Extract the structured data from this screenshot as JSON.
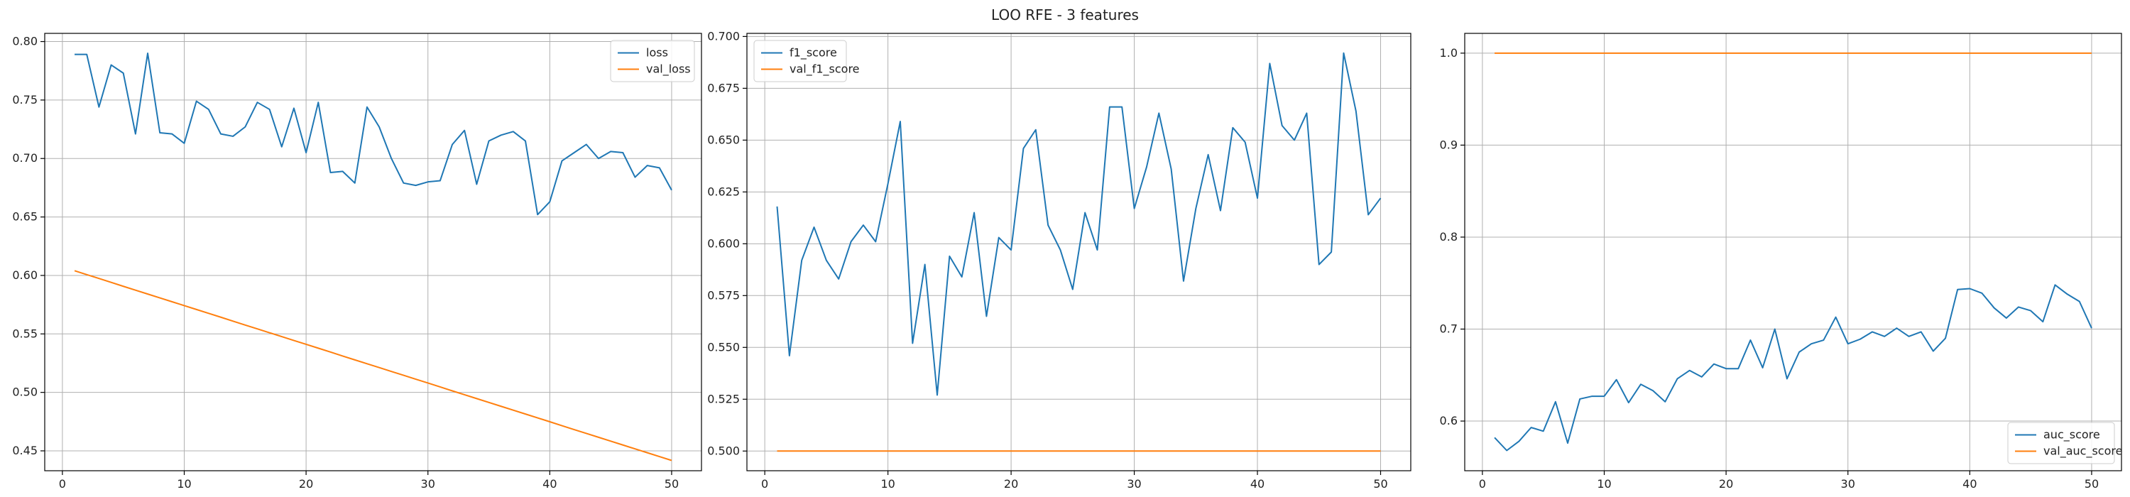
{
  "figure": {
    "title": "LOO RFE - 3 features"
  },
  "colors": {
    "series1": "#1f77b4",
    "series2": "#ff7f0e",
    "grid": "#b0b0b0",
    "axes": "#000000"
  },
  "chart_data": [
    {
      "type": "line",
      "title": "",
      "xlabel": "",
      "ylabel": "",
      "xlim": [
        -1.45,
        52.45
      ],
      "ylim": [
        0.433,
        0.807
      ],
      "xticks": [
        0,
        10,
        20,
        30,
        40,
        50
      ],
      "yticks": [
        0.45,
        0.5,
        0.55,
        0.6,
        0.65,
        0.7,
        0.75,
        0.8
      ],
      "ytick_labels": [
        "0.45",
        "0.50",
        "0.55",
        "0.60",
        "0.65",
        "0.70",
        "0.75",
        "0.80"
      ],
      "grid": true,
      "legend_position": "top-right",
      "x": [
        1,
        2,
        3,
        4,
        5,
        6,
        7,
        8,
        9,
        10,
        11,
        12,
        13,
        14,
        15,
        16,
        17,
        18,
        19,
        20,
        21,
        22,
        23,
        24,
        25,
        26,
        27,
        28,
        29,
        30,
        31,
        32,
        33,
        34,
        35,
        36,
        37,
        38,
        39,
        40,
        41,
        42,
        43,
        44,
        45,
        46,
        47,
        48,
        49,
        50
      ],
      "series": [
        {
          "name": "loss",
          "color": "#1f77b4",
          "values": [
            0.789,
            0.789,
            0.744,
            0.78,
            0.773,
            0.721,
            0.79,
            0.722,
            0.721,
            0.713,
            0.749,
            0.742,
            0.721,
            0.719,
            0.727,
            0.748,
            0.742,
            0.71,
            0.743,
            0.705,
            0.748,
            0.688,
            0.689,
            0.679,
            0.744,
            0.727,
            0.7,
            0.679,
            0.677,
            0.68,
            0.681,
            0.712,
            0.724,
            0.678,
            0.715,
            0.72,
            0.723,
            0.715,
            0.652,
            0.663,
            0.698,
            0.705,
            0.712,
            0.7,
            0.706,
            0.705,
            0.684,
            0.694,
            0.692,
            0.673
          ]
        },
        {
          "name": "val_loss",
          "color": "#ff7f0e",
          "values": [
            0.604,
            0.6007,
            0.5974,
            0.5941,
            0.5907,
            0.5874,
            0.5841,
            0.5808,
            0.5775,
            0.5742,
            0.5709,
            0.5676,
            0.5643,
            0.5609,
            0.5576,
            0.5543,
            0.551,
            0.5477,
            0.5444,
            0.5411,
            0.5378,
            0.5345,
            0.5311,
            0.5278,
            0.5245,
            0.5212,
            0.5179,
            0.5146,
            0.5113,
            0.508,
            0.5047,
            0.5013,
            0.498,
            0.4947,
            0.4914,
            0.4881,
            0.4848,
            0.4815,
            0.4782,
            0.4749,
            0.4715,
            0.4682,
            0.4649,
            0.4616,
            0.4583,
            0.455,
            0.4517,
            0.4484,
            0.4451,
            0.4418
          ]
        }
      ]
    },
    {
      "type": "line",
      "title": "",
      "xlabel": "",
      "ylabel": "",
      "xlim": [
        -1.45,
        52.45
      ],
      "ylim": [
        0.4905,
        0.7015
      ],
      "xticks": [
        0,
        10,
        20,
        30,
        40,
        50
      ],
      "yticks": [
        0.5,
        0.525,
        0.55,
        0.575,
        0.6,
        0.625,
        0.65,
        0.675,
        0.7
      ],
      "ytick_labels": [
        "0.500",
        "0.525",
        "0.550",
        "0.575",
        "0.600",
        "0.625",
        "0.650",
        "0.675",
        "0.700"
      ],
      "grid": true,
      "legend_position": "top-left",
      "x": [
        1,
        2,
        3,
        4,
        5,
        6,
        7,
        8,
        9,
        10,
        11,
        12,
        13,
        14,
        15,
        16,
        17,
        18,
        19,
        20,
        21,
        22,
        23,
        24,
        25,
        26,
        27,
        28,
        29,
        30,
        31,
        32,
        33,
        34,
        35,
        36,
        37,
        38,
        39,
        40,
        41,
        42,
        43,
        44,
        45,
        46,
        47,
        48,
        49,
        50
      ],
      "series": [
        {
          "name": "f1_score",
          "color": "#1f77b4",
          "values": [
            0.618,
            0.546,
            0.592,
            0.608,
            0.592,
            0.583,
            0.601,
            0.609,
            0.601,
            0.629,
            0.659,
            0.552,
            0.59,
            0.527,
            0.594,
            0.584,
            0.615,
            0.565,
            0.603,
            0.597,
            0.646,
            0.655,
            0.609,
            0.597,
            0.578,
            0.615,
            0.597,
            0.666,
            0.666,
            0.617,
            0.637,
            0.663,
            0.636,
            0.582,
            0.617,
            0.643,
            0.616,
            0.656,
            0.649,
            0.622,
            0.687,
            0.657,
            0.65,
            0.663,
            0.59,
            0.596,
            0.692,
            0.664,
            0.614,
            0.622
          ]
        },
        {
          "name": "val_f1_score",
          "color": "#ff7f0e",
          "values": [
            0.5,
            0.5,
            0.5,
            0.5,
            0.5,
            0.5,
            0.5,
            0.5,
            0.5,
            0.5,
            0.5,
            0.5,
            0.5,
            0.5,
            0.5,
            0.5,
            0.5,
            0.5,
            0.5,
            0.5,
            0.5,
            0.5,
            0.5,
            0.5,
            0.5,
            0.5,
            0.5,
            0.5,
            0.5,
            0.5,
            0.5,
            0.5,
            0.5,
            0.5,
            0.5,
            0.5,
            0.5,
            0.5,
            0.5,
            0.5,
            0.5,
            0.5,
            0.5,
            0.5,
            0.5,
            0.5,
            0.5,
            0.5,
            0.5,
            0.5
          ]
        }
      ]
    },
    {
      "type": "line",
      "title": "",
      "xlabel": "",
      "ylabel": "",
      "xlim": [
        -1.45,
        52.45
      ],
      "ylim": [
        0.546,
        1.0215
      ],
      "xticks": [
        0,
        10,
        20,
        30,
        40,
        50
      ],
      "yticks": [
        0.6,
        0.7,
        0.8,
        0.9,
        1.0
      ],
      "ytick_labels": [
        "0.6",
        "0.7",
        "0.8",
        "0.9",
        "1.0"
      ],
      "grid": true,
      "legend_position": "bottom-right",
      "x": [
        1,
        2,
        3,
        4,
        5,
        6,
        7,
        8,
        9,
        10,
        11,
        12,
        13,
        14,
        15,
        16,
        17,
        18,
        19,
        20,
        21,
        22,
        23,
        24,
        25,
        26,
        27,
        28,
        29,
        30,
        31,
        32,
        33,
        34,
        35,
        36,
        37,
        38,
        39,
        40,
        41,
        42,
        43,
        44,
        45,
        46,
        47,
        48,
        49,
        50
      ],
      "series": [
        {
          "name": "auc_score",
          "color": "#1f77b4",
          "values": [
            0.582,
            0.568,
            0.578,
            0.593,
            0.589,
            0.621,
            0.576,
            0.624,
            0.627,
            0.627,
            0.645,
            0.62,
            0.64,
            0.633,
            0.621,
            0.646,
            0.655,
            0.648,
            0.662,
            0.657,
            0.657,
            0.688,
            0.658,
            0.7,
            0.646,
            0.675,
            0.684,
            0.688,
            0.713,
            0.684,
            0.689,
            0.697,
            0.692,
            0.701,
            0.692,
            0.697,
            0.676,
            0.69,
            0.743,
            0.744,
            0.739,
            0.723,
            0.712,
            0.724,
            0.72,
            0.708,
            0.748,
            0.738,
            0.73,
            0.701
          ]
        },
        {
          "name": "val_auc_score",
          "color": "#ff7f0e",
          "values": [
            1.0,
            1.0,
            1.0,
            1.0,
            1.0,
            1.0,
            1.0,
            1.0,
            1.0,
            1.0,
            1.0,
            1.0,
            1.0,
            1.0,
            1.0,
            1.0,
            1.0,
            1.0,
            1.0,
            1.0,
            1.0,
            1.0,
            1.0,
            1.0,
            1.0,
            1.0,
            1.0,
            1.0,
            1.0,
            1.0,
            1.0,
            1.0,
            1.0,
            1.0,
            1.0,
            1.0,
            1.0,
            1.0,
            1.0,
            1.0,
            1.0,
            1.0,
            1.0,
            1.0,
            1.0,
            1.0,
            1.0,
            1.0,
            1.0,
            1.0
          ]
        }
      ]
    }
  ]
}
